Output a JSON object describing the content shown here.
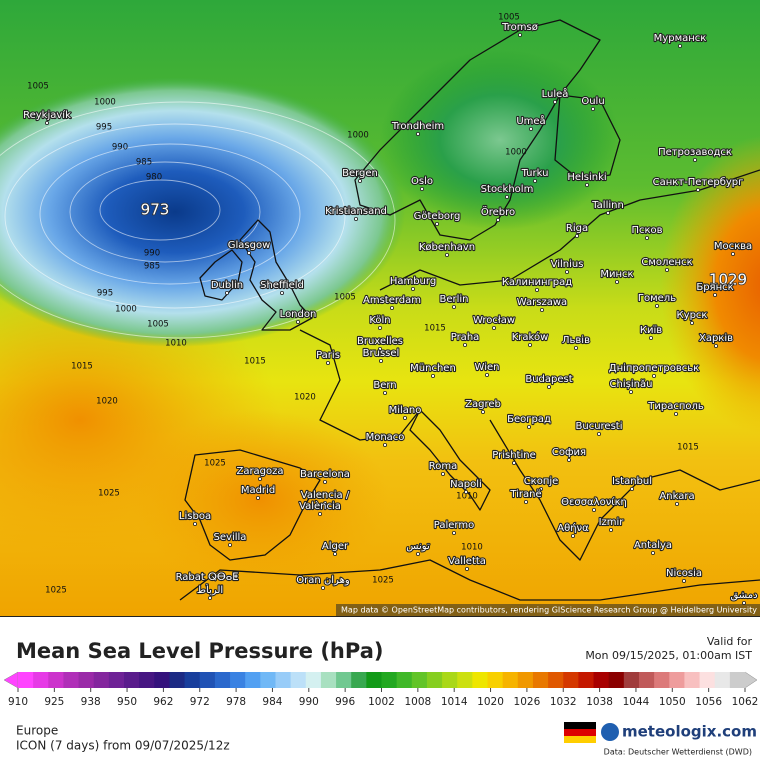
{
  "map": {
    "centers": [
      973,
      1029
    ],
    "isobar_labels": [
      1005,
      1000,
      995,
      990,
      985,
      980,
      990,
      985,
      995,
      1000,
      1005,
      1010,
      1015,
      1020,
      1025,
      1025,
      1025,
      1020,
      1015,
      1015,
      1025,
      1000,
      1000,
      1005,
      1005,
      1010,
      1010,
      1015
    ],
    "cities": [
      "Reykjavík",
      "Tromsø",
      "Мурманск",
      "Luleå",
      "Oulu",
      "Umeå",
      "Trondheim",
      "Петрозаводск",
      "Bergen",
      "Oslo",
      "Turku",
      "Helsinki",
      "Stockholm",
      "Санкт-Петербург",
      "Kristiansand",
      "Göteborg",
      "Örebro",
      "Tallinn",
      "Glasgow",
      "København",
      "Riga",
      "Псков",
      "Москва",
      "Dublin",
      "Sheffield",
      "Hamburg",
      "Vilnius",
      "Минск",
      "Смоленск",
      "Калининград",
      "Amsterdam",
      "Berlin",
      "Warszawa",
      "Гомель",
      "Брянск",
      "London",
      "Köln",
      "Wrocław",
      "Курск",
      "Київ",
      "Bruxelles",
      "Brussel",
      "Praha",
      "Kraków",
      "Львів",
      "Харків",
      "Paris",
      "München",
      "Wien",
      "Дніпропетровськ",
      "Chișinău",
      "Bern",
      "Budapest",
      "Тирасполь",
      "Milano",
      "Zagreb",
      "Београд",
      "Monaco",
      "Bucuresti",
      "София",
      "Zaragoza",
      "Barcelona",
      "Roma",
      "Prishtine",
      "Istanbul",
      "Madrid",
      "Napoli",
      "Скопје",
      "Valencia /",
      "València",
      "Tiranë",
      "Θεσσαλονίκη",
      "Ankara",
      "Lisboa",
      "Izmir",
      "Sevilla",
      "Palermo",
      "Αθήνα",
      "Alger",
      "Antalya",
      "Valletta",
      "Nicosia",
      "Rabat ⵕⴱⴰⵟ",
      "الرباط",
      "Oran وهران",
      "تونس",
      "دمشق"
    ],
    "attribution": "Map data © OpenStreetMap contributors, rendering GIScience Research Group @ Heidelberg University"
  },
  "legend": {
    "title": "Mean Sea Level Pressure (hPa)",
    "valid_label": "Valid for",
    "valid_time": "Mon 09/15/2025, 01:00am IST",
    "colorbar": {
      "ticks": [
        910,
        925,
        938,
        950,
        962,
        972,
        978,
        984,
        990,
        996,
        1002,
        1008,
        1014,
        1020,
        1026,
        1032,
        1038,
        1044,
        1050,
        1056,
        1062
      ],
      "colors": [
        "#ff44ff",
        "#e63ae6",
        "#cc33cc",
        "#b02eb8",
        "#9a2aa8",
        "#84269e",
        "#6e2296",
        "#5a1c8c",
        "#461682",
        "#34127c",
        "#1c2a84",
        "#183e9c",
        "#2052b4",
        "#2a68cc",
        "#3a82e2",
        "#52a0f2",
        "#70b8f6",
        "#98ccf8",
        "#bce0f8",
        "#d4f0f0",
        "#a8e0c0",
        "#70c890",
        "#38a850",
        "#129a18",
        "#22a820",
        "#40b828",
        "#62c428",
        "#86ce20",
        "#aad818",
        "#cce010",
        "#eee600",
        "#f8d000",
        "#f6b400",
        "#f09800",
        "#e87800",
        "#e05800",
        "#d43800",
        "#c41800",
        "#a80000",
        "#8a0000",
        "#a03c3c",
        "#c05a5a",
        "#dc7a7a",
        "#ee9c9c",
        "#f8c0c0",
        "#fce0e0",
        "#e8e8e8",
        "#cccccc"
      ]
    },
    "region": "Europe",
    "model": "ICON (7 days) from 09/07/2025/12z",
    "brand": "meteologix.com",
    "source": "Data: Deutscher Wetterdienst (DWD)"
  }
}
